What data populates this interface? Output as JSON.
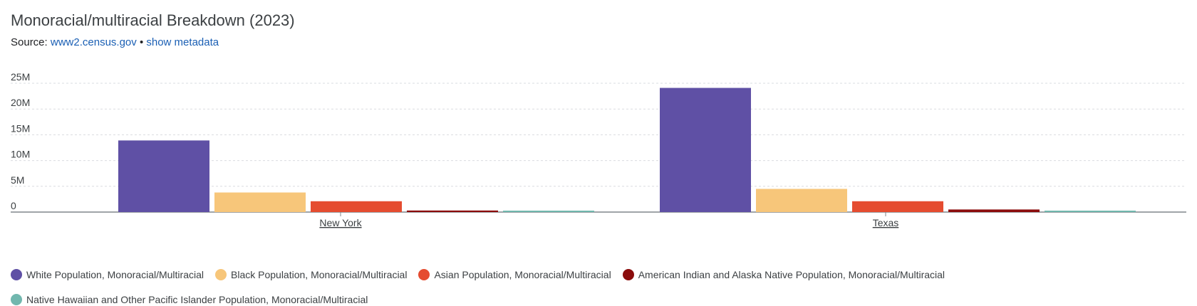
{
  "header": {
    "title": "Monoracial/multiracial Breakdown (2023)",
    "source_label": "Source:",
    "source_link": "www2.census.gov",
    "separator": "•",
    "metadata_link": "show metadata"
  },
  "colors": {
    "grid": "#dadce0",
    "axis": "#80868b",
    "text": "#3c4043"
  },
  "chart_data": {
    "type": "bar",
    "title": "Monoracial/multiracial Breakdown (2023)",
    "categories": [
      "New York",
      "Texas"
    ],
    "ylim": [
      0,
      25000000
    ],
    "yticks": [
      0,
      5000000,
      10000000,
      15000000,
      20000000,
      25000000
    ],
    "ytick_labels": [
      "0",
      "5M",
      "10M",
      "15M",
      "20M",
      "25M"
    ],
    "grid": true,
    "legend_position": "bottom",
    "series": [
      {
        "name": "White Population, Monoracial/Multiracial",
        "color": "#5f50a5",
        "values": [
          13900000,
          24100000
        ]
      },
      {
        "name": "Black Population, Monoracial/Multiracial",
        "color": "#f7c67a",
        "values": [
          3800000,
          4500000
        ]
      },
      {
        "name": "Asian Population, Monoracial/Multiracial",
        "color": "#e54c30",
        "values": [
          2100000,
          2100000
        ]
      },
      {
        "name": "American Indian and Alaska Native Population, Monoracial/Multiracial",
        "color": "#8b0c0c",
        "values": [
          300000,
          500000
        ]
      },
      {
        "name": "Native Hawaiian and Other Pacific Islander Population, Monoracial/Multiracial",
        "color": "#71b7ae",
        "values": [
          20000,
          250000
        ]
      }
    ]
  }
}
